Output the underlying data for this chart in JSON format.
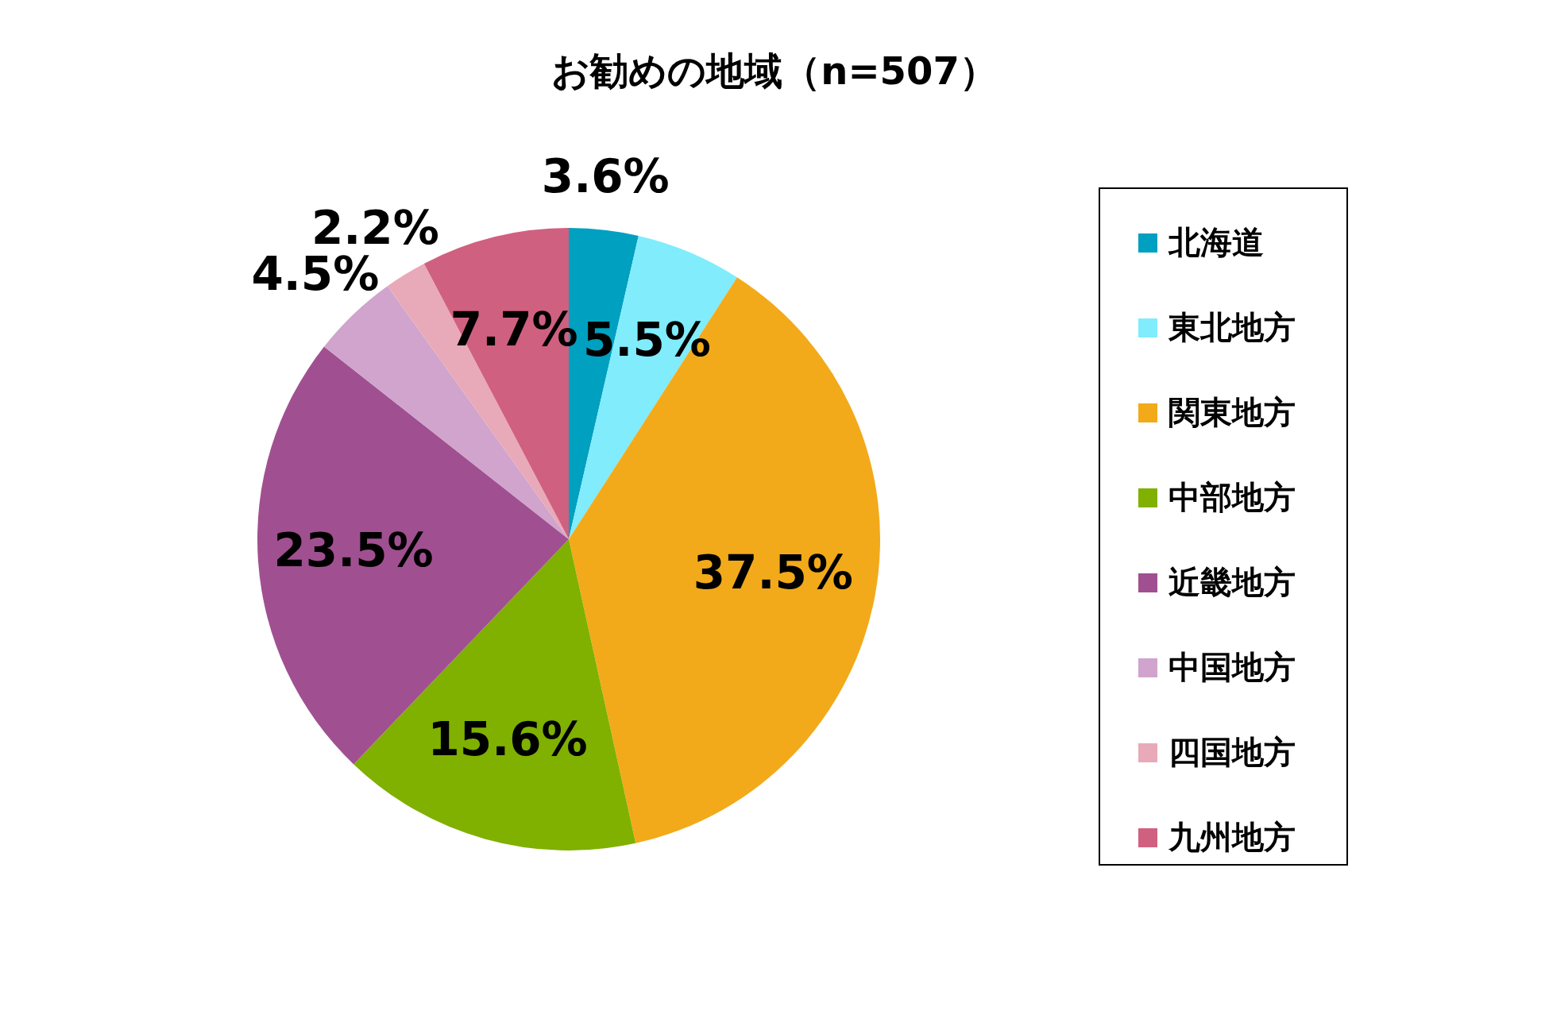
{
  "chart_data": {
    "type": "pie",
    "title": "お勧めの地域（n=507）",
    "categories": [
      "北海道",
      "東北地方",
      "関東地方",
      "中部地方",
      "近畿地方",
      "中国地方",
      "四国地方",
      "九州地方"
    ],
    "values": [
      3.6,
      5.5,
      37.5,
      15.6,
      23.5,
      4.5,
      2.2,
      7.7
    ],
    "value_labels": [
      "3.6%",
      "5.5%",
      "37.5%",
      "15.6%",
      "23.5%",
      "4.5%",
      "2.2%",
      "7.7%"
    ],
    "colors": [
      "#00a0c0",
      "#80ecfc",
      "#f2aa1a",
      "#80b000",
      "#a05090",
      "#d0a4cc",
      "#e8aab8",
      "#d06080"
    ],
    "legend": "right"
  }
}
